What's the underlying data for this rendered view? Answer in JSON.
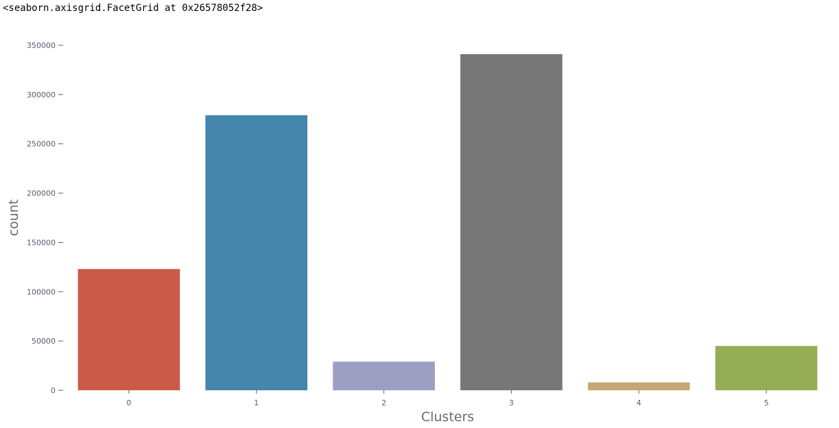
{
  "output_text": "<seaborn.axisgrid.FacetGrid at 0x26578052f28>",
  "chart_data": {
    "type": "bar",
    "categories": [
      "0",
      "1",
      "2",
      "3",
      "4",
      "5"
    ],
    "values": [
      123000,
      279000,
      29000,
      341000,
      8000,
      45000
    ],
    "colors": [
      "#cc5a49",
      "#4586ac",
      "#9e9ec3",
      "#777777",
      "#c4a777",
      "#95ad55"
    ],
    "xlabel": "Clusters",
    "ylabel": "count",
    "ylim": [
      0,
      350000
    ],
    "yticks": [
      0,
      50000,
      100000,
      150000,
      200000,
      250000,
      300000,
      350000
    ],
    "ytick_labels": [
      "0",
      "50000",
      "100000",
      "150000",
      "200000",
      "250000",
      "300000",
      "350000"
    ],
    "grid": false
  }
}
